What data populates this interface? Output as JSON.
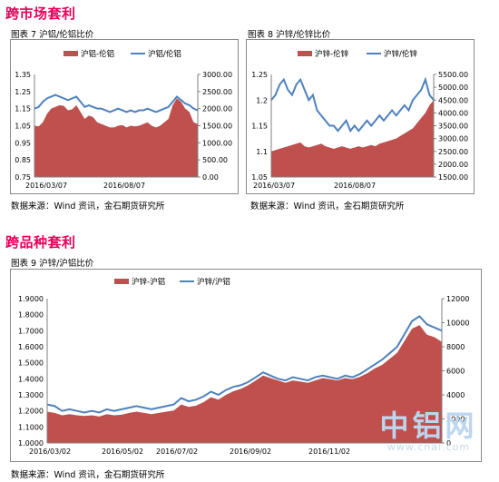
{
  "sections": {
    "cross_market": "跨市场套利",
    "cross_variety": "跨品种套利"
  },
  "captions": {
    "fig7": "图表 7 沪铝/伦铝比价",
    "fig8": "图表 8 沪锌/伦锌比价",
    "fig9": "图表 9 沪锌/沪铝比价"
  },
  "sources": {
    "left": "数据来源：Wind 资讯，金石期货研究所",
    "right": "数据来源：Wind 资讯，金石期货研究所",
    "bottom": "数据来源：Wind 资讯，金石期货研究所"
  },
  "watermark": {
    "main": "中铝网",
    "sub": "www.cnal.com"
  },
  "colors": {
    "area": "#c0504d",
    "line": "#4f81bd",
    "section_title": "#e5005a"
  },
  "chart_data": [
    {
      "id": "fig7",
      "type": "area",
      "series": [
        {
          "name": "沪铝-伦铝",
          "kind": "area",
          "axis": "right",
          "values": [
            1500,
            1480,
            1600,
            1850,
            2000,
            2050,
            2100,
            2080,
            1950,
            1980,
            2100,
            1900,
            1700,
            1800,
            1750,
            1600,
            1550,
            1500,
            1450,
            1450,
            1500,
            1520,
            1450,
            1500,
            1480,
            1500,
            1550,
            1600,
            1500,
            1450,
            1500,
            1600,
            1700,
            2100,
            2300,
            2200,
            2000,
            1900,
            1600,
            1550
          ]
        },
        {
          "name": "沪铝/伦铝",
          "kind": "line",
          "axis": "left",
          "values": [
            1.15,
            1.16,
            1.19,
            1.21,
            1.22,
            1.23,
            1.22,
            1.21,
            1.2,
            1.21,
            1.22,
            1.19,
            1.16,
            1.17,
            1.16,
            1.15,
            1.15,
            1.14,
            1.13,
            1.14,
            1.15,
            1.14,
            1.13,
            1.14,
            1.13,
            1.14,
            1.14,
            1.15,
            1.14,
            1.13,
            1.14,
            1.15,
            1.16,
            1.19,
            1.22,
            1.2,
            1.18,
            1.17,
            1.15,
            1.14
          ]
        }
      ],
      "x_ticks": [
        "2016/03/07",
        "2016/08/07"
      ],
      "y_left": {
        "ticks": [
          "0.75",
          "0.85",
          "0.95",
          "1.05",
          "1.15",
          "1.25",
          "1.35"
        ],
        "min": 0.75,
        "max": 1.35
      },
      "y_right": {
        "ticks": [
          "0.00",
          "500.00",
          "1000.00",
          "1500.00",
          "2000.00",
          "2500.00",
          "3000.00"
        ],
        "min": 0,
        "max": 3000
      }
    },
    {
      "id": "fig8",
      "type": "area",
      "series": [
        {
          "name": "沪锌-伦锌",
          "kind": "area",
          "axis": "right",
          "values": [
            2500,
            2550,
            2600,
            2650,
            2700,
            2750,
            2800,
            2850,
            2700,
            2650,
            2700,
            2750,
            2800,
            2700,
            2650,
            2600,
            2650,
            2700,
            2650,
            2600,
            2650,
            2700,
            2650,
            2700,
            2750,
            2700,
            2800,
            2850,
            2900,
            2950,
            3000,
            3100,
            3200,
            3300,
            3400,
            3600,
            3800,
            4000,
            4300,
            4500
          ]
        },
        {
          "name": "沪锌/伦锌",
          "kind": "line",
          "axis": "left",
          "values": [
            1.2,
            1.21,
            1.23,
            1.24,
            1.22,
            1.21,
            1.23,
            1.24,
            1.22,
            1.2,
            1.21,
            1.18,
            1.17,
            1.16,
            1.15,
            1.15,
            1.14,
            1.15,
            1.16,
            1.14,
            1.15,
            1.14,
            1.15,
            1.16,
            1.15,
            1.16,
            1.17,
            1.16,
            1.17,
            1.18,
            1.17,
            1.18,
            1.19,
            1.18,
            1.2,
            1.21,
            1.22,
            1.24,
            1.21,
            1.2
          ]
        }
      ],
      "x_ticks": [
        "2016/03/07",
        "2016/08/07"
      ],
      "y_left": {
        "ticks": [
          "1.05",
          "1.1",
          "1.15",
          "1.2",
          "1.25"
        ],
        "min": 1.05,
        "max": 1.25
      },
      "y_right": {
        "ticks": [
          "1500.00",
          "2000.00",
          "2500.00",
          "3000.00",
          "3500.00",
          "4000.00",
          "4500.00",
          "5000.00",
          "5500.00"
        ],
        "min": 1500,
        "max": 5500
      }
    },
    {
      "id": "fig9",
      "type": "area",
      "series": [
        {
          "name": "沪锌-沪铝",
          "kind": "area",
          "axis": "right",
          "values": [
            2600,
            2500,
            2300,
            2400,
            2300,
            2250,
            2300,
            2200,
            2400,
            2300,
            2350,
            2500,
            2600,
            2500,
            2400,
            2500,
            2600,
            2700,
            3200,
            3000,
            3100,
            3400,
            3800,
            3600,
            4000,
            4300,
            4500,
            4800,
            5200,
            5600,
            5400,
            5200,
            5000,
            5200,
            5100,
            5000,
            5200,
            5400,
            5300,
            5200,
            5400,
            5300,
            5500,
            5800,
            6200,
            6500,
            7000,
            7500,
            8500,
            9500,
            9800,
            9000,
            8800,
            8400
          ]
        },
        {
          "name": "沪锌/沪铝",
          "kind": "line",
          "axis": "left",
          "values": [
            1.24,
            1.23,
            1.2,
            1.21,
            1.2,
            1.19,
            1.2,
            1.19,
            1.21,
            1.2,
            1.21,
            1.22,
            1.23,
            1.22,
            1.21,
            1.22,
            1.23,
            1.24,
            1.28,
            1.26,
            1.27,
            1.29,
            1.32,
            1.3,
            1.33,
            1.35,
            1.36,
            1.38,
            1.41,
            1.44,
            1.42,
            1.4,
            1.39,
            1.41,
            1.4,
            1.39,
            1.41,
            1.42,
            1.41,
            1.4,
            1.42,
            1.41,
            1.43,
            1.46,
            1.49,
            1.52,
            1.56,
            1.6,
            1.68,
            1.76,
            1.79,
            1.74,
            1.72,
            1.7
          ]
        }
      ],
      "x_ticks": [
        "2016/03/02",
        "2016/05/02",
        "2016/07/02",
        "2016/09/02",
        "2016/11/02"
      ],
      "y_left": {
        "ticks": [
          "1.0000",
          "1.1000",
          "1.2000",
          "1.3000",
          "1.4000",
          "1.5000",
          "1.6000",
          "1.7000",
          "1.8000",
          "1.9000"
        ],
        "min": 1.0,
        "max": 1.9
      },
      "y_right": {
        "ticks": [
          "0",
          "2000",
          "4000",
          "6000",
          "8000",
          "10000",
          "12000"
        ],
        "min": 0,
        "max": 12000
      }
    }
  ]
}
